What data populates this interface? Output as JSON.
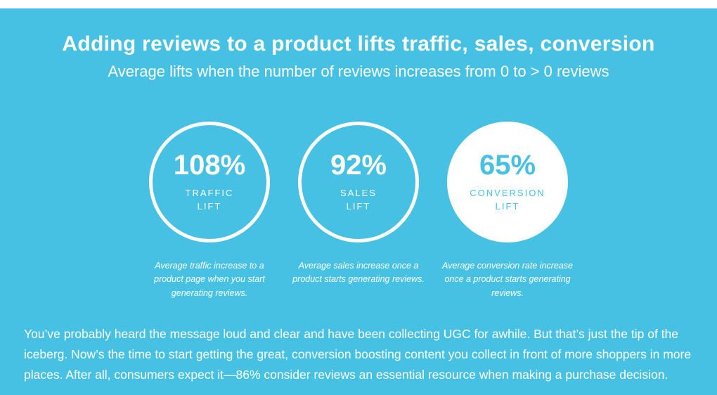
{
  "page": {
    "title": "Adding reviews to a product lifts traffic, sales, conversion",
    "subtitle": "Average lifts when the number of reviews increases from 0 to > 0 reviews"
  },
  "colors": {
    "background_blue": "#47c1e3",
    "text_white": "#ffffff"
  },
  "stats": [
    {
      "value": "108%",
      "label_line1": "TRAFFIC",
      "label_line2": "LIFT",
      "caption": "Average traffic increase to a product page when you start generating reviews.",
      "filled": false
    },
    {
      "value": "92%",
      "label_line1": "SALES",
      "label_line2": "LIFT",
      "caption": "Average sales increase once a product starts generating reviews.",
      "filled": false
    },
    {
      "value": "65%",
      "label_line1": "CONVERSION",
      "label_line2": "LIFT",
      "caption": "Average conversion rate increase once a product starts generating reviews.",
      "filled": true
    }
  ],
  "footer": {
    "text": "You’ve probably heard the message loud and clear and have been collecting UGC for awhile. But that’s just the tip of the iceberg. Now’s the time to start getting the great, conversion boosting content you collect in front of more shoppers in more places. After all, consumers expect it—86% consider reviews an essential resource when making a purchase decision."
  },
  "chart_data": {
    "type": "table",
    "title": "Adding reviews to a product lifts traffic, sales, conversion",
    "subtitle": "Average lifts when the number of reviews increases from 0 to > 0 reviews",
    "categories": [
      "Traffic lift",
      "Sales lift",
      "Conversion lift"
    ],
    "values": [
      108,
      92,
      65
    ],
    "unit": "%",
    "annotations": [
      "Average traffic increase to a product page when you start generating reviews.",
      "Average sales increase once a product starts generating reviews.",
      "Average conversion rate increase once a product starts generating reviews."
    ],
    "footnote": "86% consider reviews an essential resource when making a purchase decision"
  }
}
